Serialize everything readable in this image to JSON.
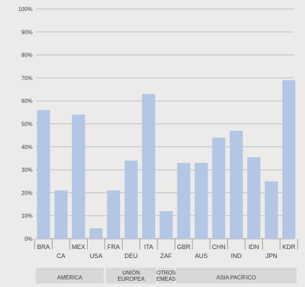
{
  "chart_data": {
    "type": "bar",
    "categories": [
      "BRA",
      "CA",
      "MEX",
      "USA",
      "FRA",
      "DEU",
      "ITA",
      "ZAF",
      "GBR",
      "AUS",
      "CHN",
      "IND",
      "IDN",
      "JPN",
      "KDR"
    ],
    "values": [
      56,
      21,
      54,
      4.5,
      21,
      34,
      63,
      12,
      33,
      33,
      44,
      47,
      35.5,
      25,
      69
    ],
    "ylim": [
      0,
      100
    ],
    "yticks": [
      "0%",
      "10%",
      "20%",
      "30%",
      "40%",
      "50%",
      "60%",
      "70%",
      "80%",
      "90%",
      "100%"
    ],
    "ytick_values": [
      0,
      10,
      20,
      30,
      40,
      50,
      60,
      70,
      80,
      90,
      100
    ],
    "grid": true,
    "bar_color": "#b3c6e6",
    "groups": [
      {
        "label_lines": [
          "AMÉRICA"
        ],
        "start": 0,
        "end": 3
      },
      {
        "label_lines": [
          "UNIÓN",
          "EUROPEA"
        ],
        "start": 4,
        "end": 6
      },
      {
        "label_lines": [
          "OTROS",
          "EMEAS"
        ],
        "start": 7,
        "end": 7
      },
      {
        "label_lines": [
          "ASIA PACÍFICO"
        ],
        "start": 8,
        "end": 14
      }
    ]
  }
}
